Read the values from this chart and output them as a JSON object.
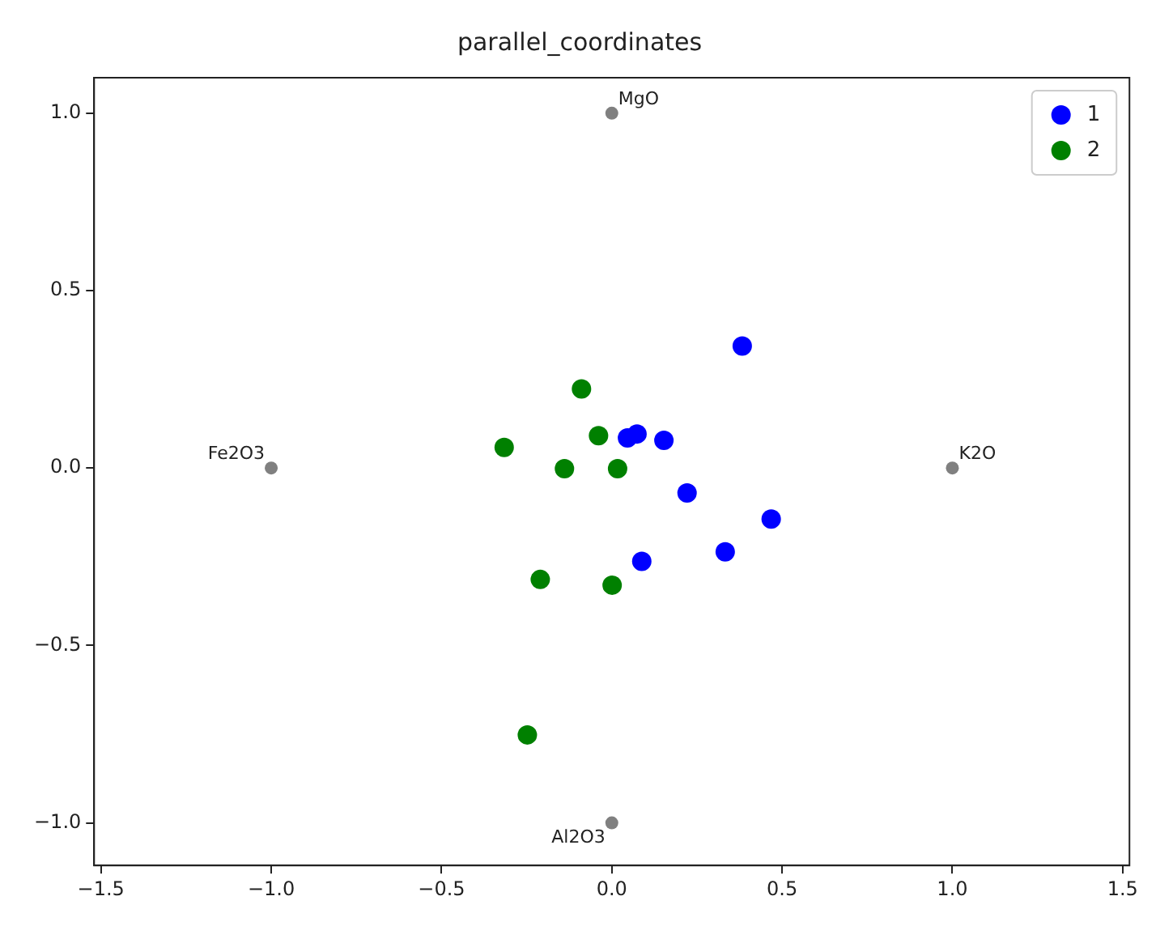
{
  "chart_data": {
    "type": "scatter",
    "title": "parallel_coordinates",
    "xlim": [
      -1.52,
      1.52
    ],
    "ylim": [
      -1.12,
      1.1
    ],
    "xticks": [
      {
        "value": -1.5,
        "label": "−1.5"
      },
      {
        "value": -1,
        "label": "−1.0"
      },
      {
        "value": -0.5,
        "label": "−0.5"
      },
      {
        "value": 0,
        "label": "0.0"
      },
      {
        "value": 0.5,
        "label": "0.5"
      },
      {
        "value": 1,
        "label": "1.0"
      },
      {
        "value": 1.5,
        "label": "1.5"
      }
    ],
    "yticks": [
      {
        "value": -1,
        "label": "−1.0"
      },
      {
        "value": -0.5,
        "label": "−0.5"
      },
      {
        "value": 0,
        "label": "0.0"
      },
      {
        "value": 0.5,
        "label": "0.5"
      },
      {
        "value": 1,
        "label": "1.0"
      }
    ],
    "grid": false,
    "legend": "top right",
    "marker": "circle",
    "series": [
      {
        "color": "#808080",
        "x": [
          -1,
          0,
          1,
          0
        ],
        "values": [
          0,
          1,
          0,
          -1
        ]
      },
      {
        "name": "1",
        "color": "#0000ff",
        "x": [
          0.383,
          0.046,
          0.074,
          0.153,
          0.221,
          0.468,
          0.333,
          0.088
        ],
        "values": [
          0.344,
          0.085,
          0.096,
          0.078,
          -0.07,
          -0.144,
          -0.236,
          -0.263
        ]
      },
      {
        "name": "2",
        "color": "#008000",
        "x": [
          -0.089,
          -0.316,
          -0.039,
          -0.139,
          0.017,
          -0.21,
          0.001,
          -0.248
        ],
        "values": [
          0.223,
          0.058,
          0.091,
          -0.002,
          -0.002,
          -0.314,
          -0.33,
          -0.752
        ]
      }
    ],
    "annotations": [
      {
        "text": "MgO",
        "x": 0,
        "y": 1
      },
      {
        "text": "Fe2O3",
        "x": -1,
        "y": 0
      },
      {
        "text": "K2O",
        "x": 1,
        "y": 0
      },
      {
        "text": "Al2O3",
        "x": 0,
        "y": -1
      }
    ]
  }
}
